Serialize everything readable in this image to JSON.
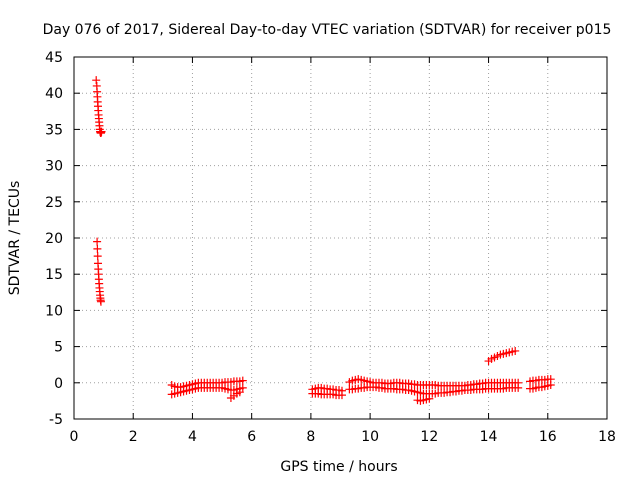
{
  "chart_data": {
    "type": "scatter",
    "title": "Day 076 of 2017, Sidereal Day-to-day VTEC variation (SDTVAR) for receiver p015",
    "xlabel": "GPS time / hours",
    "ylabel": "SDTVAR / TECUs",
    "xlim": [
      0,
      18
    ],
    "ylim": [
      -5,
      45
    ],
    "xticks": [
      0,
      2,
      4,
      6,
      8,
      10,
      12,
      14,
      16,
      18
    ],
    "yticks": [
      -5,
      0,
      5,
      10,
      15,
      20,
      25,
      30,
      35,
      40,
      45
    ],
    "grid": true,
    "marker": "+",
    "color": "#ff0000",
    "series": [
      {
        "x": [
          0.75,
          0.77,
          0.78,
          0.79,
          0.8,
          0.81,
          0.82,
          0.83,
          0.84,
          0.85,
          0.86,
          0.87,
          0.88,
          0.89,
          0.9,
          0.91,
          0.92,
          0.93,
          0.78,
          0.79,
          0.8,
          0.81,
          0.82,
          0.83,
          0.84,
          0.85,
          0.86,
          0.87,
          0.88,
          0.89,
          0.9,
          0.91,
          3.3,
          3.4,
          3.5,
          3.6,
          3.7,
          3.8,
          3.9,
          4.0,
          4.1,
          4.2,
          4.3,
          4.4,
          4.5,
          4.6,
          4.7,
          4.8,
          4.9,
          5.0,
          5.1,
          5.2,
          5.3,
          5.4,
          5.5,
          5.6,
          5.7,
          3.3,
          3.4,
          3.5,
          3.6,
          3.7,
          3.8,
          3.9,
          4.0,
          4.1,
          4.2,
          4.3,
          4.4,
          4.5,
          4.6,
          4.7,
          4.8,
          4.9,
          5.0,
          5.1,
          5.2,
          5.3,
          5.4,
          5.5,
          5.6,
          5.7,
          5.3,
          5.4,
          5.5,
          5.6,
          8.05,
          8.15,
          8.25,
          8.35,
          8.45,
          8.55,
          8.65,
          8.75,
          8.85,
          8.95,
          9.05,
          8.05,
          8.15,
          8.25,
          8.35,
          8.45,
          8.55,
          8.65,
          8.75,
          8.85,
          8.95,
          9.05,
          9.3,
          9.4,
          9.5,
          9.6,
          9.7,
          9.8,
          9.9,
          10.0,
          10.1,
          10.2,
          10.3,
          10.4,
          10.5,
          10.6,
          10.7,
          10.8,
          10.9,
          11.0,
          11.1,
          11.2,
          11.3,
          11.4,
          11.5,
          11.6,
          11.7,
          11.8,
          11.9,
          12.0,
          12.1,
          12.2,
          12.3,
          12.4,
          12.5,
          12.6,
          12.7,
          12.8,
          12.9,
          13.0,
          13.1,
          13.2,
          13.3,
          13.4,
          13.5,
          13.6,
          13.7,
          13.8,
          13.9,
          14.0,
          14.1,
          14.2,
          14.3,
          14.4,
          14.5,
          14.6,
          14.7,
          14.8,
          14.9,
          15.0,
          9.3,
          9.4,
          9.5,
          9.6,
          9.7,
          9.8,
          9.9,
          10.0,
          10.1,
          10.2,
          10.3,
          10.4,
          10.5,
          10.6,
          10.7,
          10.8,
          10.9,
          11.0,
          11.1,
          11.2,
          11.3,
          11.4,
          11.5,
          11.6,
          11.7,
          11.8,
          11.9,
          12.0,
          12.1,
          12.2,
          12.3,
          12.4,
          12.5,
          12.6,
          12.7,
          12.8,
          12.9,
          13.0,
          13.1,
          13.2,
          13.3,
          13.4,
          13.5,
          13.6,
          13.7,
          13.8,
          13.9,
          14.0,
          14.1,
          14.2,
          14.3,
          14.4,
          14.5,
          14.6,
          14.7,
          14.8,
          14.9,
          15.0,
          11.6,
          11.7,
          11.8,
          11.9,
          12.0,
          14.0,
          14.1,
          14.2,
          14.3,
          14.4,
          14.5,
          14.6,
          14.7,
          14.8,
          14.9,
          15.4,
          15.5,
          15.6,
          15.7,
          15.8,
          15.9,
          16.0,
          16.1,
          15.4,
          15.5,
          15.6,
          15.7,
          15.8,
          15.9,
          16.0,
          16.1
        ],
        "y": [
          41.8,
          41.0,
          40.2,
          39.5,
          38.8,
          38.2,
          37.6,
          37.0,
          36.5,
          36.0,
          35.5,
          35.0,
          34.7,
          34.6,
          34.5,
          34.5,
          34.6,
          34.7,
          19.5,
          18.5,
          17.5,
          16.5,
          15.7,
          15.0,
          14.3,
          13.7,
          13.1,
          12.6,
          12.1,
          11.7,
          11.4,
          11.2,
          -0.3,
          -0.5,
          -0.6,
          -0.6,
          -0.5,
          -0.4,
          -0.3,
          -0.2,
          -0.1,
          0.0,
          0.0,
          0.0,
          0.0,
          0.0,
          0.0,
          0.0,
          0.0,
          0.0,
          0.1,
          0.1,
          0.1,
          0.2,
          0.2,
          0.2,
          0.3,
          -1.6,
          -1.5,
          -1.4,
          -1.3,
          -1.2,
          -1.1,
          -1.0,
          -0.9,
          -0.8,
          -0.7,
          -0.7,
          -0.7,
          -0.7,
          -0.7,
          -0.7,
          -0.7,
          -0.7,
          -0.7,
          -0.8,
          -0.9,
          -1.0,
          -1.0,
          -0.9,
          -0.8,
          -0.7,
          -2.1,
          -1.8,
          -1.5,
          -1.3,
          -0.9,
          -0.8,
          -0.7,
          -0.7,
          -0.8,
          -0.8,
          -0.9,
          -0.9,
          -1.0,
          -1.0,
          -1.1,
          -1.5,
          -1.5,
          -1.5,
          -1.6,
          -1.6,
          -1.6,
          -1.6,
          -1.6,
          -1.7,
          -1.7,
          -1.7,
          0.1,
          0.3,
          0.4,
          0.5,
          0.4,
          0.3,
          0.2,
          0.1,
          0.0,
          0.0,
          0.0,
          0.0,
          -0.1,
          -0.1,
          -0.1,
          0.0,
          0.0,
          0.0,
          -0.1,
          -0.1,
          -0.1,
          -0.2,
          -0.2,
          -0.3,
          -0.3,
          -0.3,
          -0.3,
          -0.3,
          -0.3,
          -0.3,
          -0.4,
          -0.4,
          -0.4,
          -0.4,
          -0.4,
          -0.4,
          -0.4,
          -0.4,
          -0.4,
          -0.4,
          -0.3,
          -0.3,
          -0.2,
          -0.2,
          -0.1,
          -0.1,
          0.0,
          0.0,
          0.0,
          0.0,
          0.0,
          0.0,
          0.0,
          0.0,
          0.0,
          0.0,
          0.0,
          0.0,
          -0.9,
          -0.9,
          -0.8,
          -0.8,
          -0.7,
          -0.7,
          -0.6,
          -0.6,
          -0.6,
          -0.6,
          -0.7,
          -0.7,
          -0.8,
          -0.8,
          -0.8,
          -0.8,
          -0.9,
          -0.9,
          -0.9,
          -1.0,
          -1.0,
          -1.1,
          -1.2,
          -1.3,
          -1.4,
          -1.5,
          -1.5,
          -1.5,
          -1.5,
          -1.5,
          -1.4,
          -1.4,
          -1.4,
          -1.3,
          -1.3,
          -1.2,
          -1.2,
          -1.1,
          -1.1,
          -1.0,
          -1.0,
          -1.0,
          -0.9,
          -0.9,
          -0.9,
          -0.9,
          -0.8,
          -0.8,
          -0.8,
          -0.8,
          -0.8,
          -0.8,
          -0.8,
          -0.7,
          -0.7,
          -0.7,
          -0.7,
          -0.7,
          -2.4,
          -2.5,
          -2.4,
          -2.3,
          -2.2,
          3.0,
          3.3,
          3.5,
          3.7,
          3.9,
          4.0,
          4.1,
          4.2,
          4.3,
          4.4,
          0.2,
          0.3,
          0.3,
          0.4,
          0.4,
          0.4,
          0.5,
          0.5,
          -0.8,
          -0.8,
          -0.7,
          -0.6,
          -0.6,
          -0.5,
          -0.4,
          -0.3
        ]
      }
    ]
  }
}
